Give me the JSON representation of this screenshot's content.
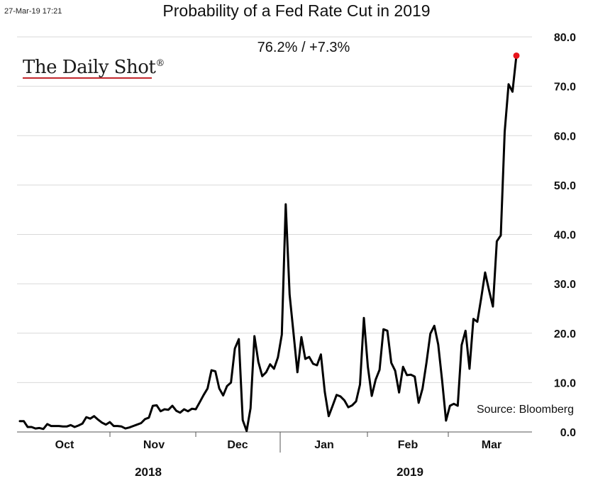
{
  "header": {
    "timestamp": "27-Mar-19 17:21",
    "title": "Probability of a Fed Rate Cut in 2019",
    "subtitle": "76.2%  /  +7.3%"
  },
  "logo": {
    "text": "The Daily Shot",
    "mark": "®",
    "underline_color": "#c1272d"
  },
  "source_note": "Source: Bloomberg",
  "chart_data": {
    "type": "line",
    "title": "Probability of a Fed Rate Cut in 2019",
    "xlabel": "",
    "ylabel": "",
    "ylim": [
      0,
      80
    ],
    "yticks": [
      "0.0",
      "10.0",
      "20.0",
      "30.0",
      "40.0",
      "50.0",
      "60.0",
      "70.0",
      "80.0"
    ],
    "grid": "horizontal",
    "y_axis_position": "right",
    "x_month_labels": [
      "Oct",
      "Nov",
      "Dec",
      "Jan",
      "Feb",
      "Mar"
    ],
    "x_year_labels": [
      "2018",
      "2019"
    ],
    "line_color": "#000000",
    "last_point_color": "#e8141b",
    "series": [
      {
        "values": [
          2.2,
          2.2,
          1.0,
          1.0,
          0.7,
          0.8,
          0.6,
          1.6,
          1.2,
          1.2,
          1.2,
          1.1,
          1.1,
          1.4,
          1.0,
          1.3,
          1.7,
          3.0,
          2.7,
          3.2,
          2.5,
          1.9,
          1.5,
          2.0,
          1.2,
          1.2,
          1.1,
          0.7,
          0.9,
          1.2,
          1.5,
          1.8,
          2.6,
          2.9,
          5.3,
          5.4,
          4.2,
          4.6,
          4.5,
          5.3,
          4.3,
          3.9,
          4.6,
          4.2,
          4.7,
          4.6,
          6.0,
          7.5,
          8.8,
          12.5,
          12.3,
          8.8,
          7.4,
          9.3,
          10.0,
          16.9,
          18.8,
          2.4,
          0.2,
          4.8,
          19.4,
          14.2,
          11.3,
          12.1,
          13.7,
          12.8,
          15.1,
          19.7,
          46.1,
          27.8,
          20.0,
          12.1,
          19.2,
          14.8,
          15.2,
          13.8,
          13.5,
          15.7,
          8.1,
          3.2,
          5.3,
          7.5,
          7.2,
          6.4,
          5.0,
          5.4,
          6.2,
          9.6,
          23.1,
          13.2,
          7.3,
          10.6,
          12.6,
          20.8,
          20.5,
          14.0,
          12.4,
          8.0,
          13.2,
          11.5,
          11.6,
          11.2,
          5.9,
          8.8,
          14.0,
          19.9,
          21.5,
          17.7,
          10.4,
          2.3,
          5.3,
          5.7,
          5.3,
          17.6,
          20.5,
          12.8,
          22.9,
          22.3,
          27.1,
          32.3,
          28.7,
          25.4,
          38.6,
          39.8,
          60.8,
          70.4,
          68.9,
          76.2
        ]
      }
    ]
  }
}
